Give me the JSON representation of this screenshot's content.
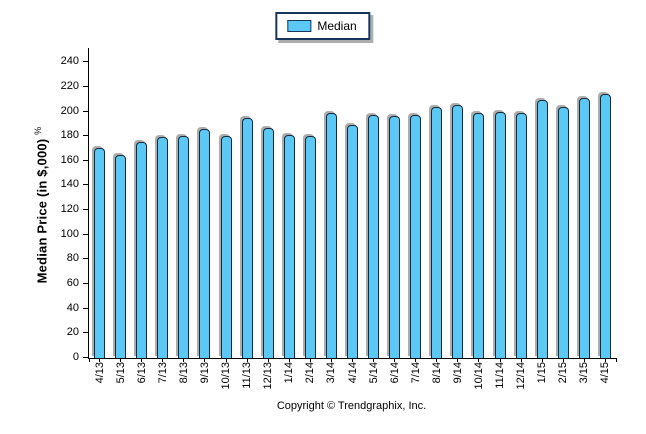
{
  "legend": {
    "label": "Median",
    "swatch_color": "#5cc8f5"
  },
  "y_axis": {
    "title": "Median Price (in $,000)",
    "title_suffix": "%"
  },
  "footer": {
    "copyright": "Copyright © Trendgraphix, Inc."
  },
  "colors": {
    "bar_fill": "#5cc8f5",
    "bar_border": "#142b3d",
    "legend_border": "#17365d",
    "axis": "#000000",
    "bar_shadow": "#919191"
  },
  "chart_data": {
    "type": "bar",
    "title": "",
    "categories": [
      "4/13",
      "5/13",
      "6/13",
      "7/13",
      "8/13",
      "9/13",
      "10/13",
      "11/13",
      "12/13",
      "1/14",
      "2/14",
      "3/14",
      "4/14",
      "5/14",
      "6/14",
      "7/14",
      "8/14",
      "9/14",
      "10/14",
      "11/14",
      "12/14",
      "1/15",
      "2/15",
      "3/15",
      "4/15"
    ],
    "series": [
      {
        "name": "Median",
        "values": [
          170,
          165,
          175,
          179,
          180,
          186,
          180,
          195,
          187,
          181,
          180,
          199,
          189,
          197,
          196,
          197,
          204,
          205,
          199,
          200,
          199,
          209,
          204,
          211,
          214
        ]
      }
    ],
    "xlabel": "",
    "ylabel": "Median Price (in $,000) %",
    "ylim": [
      0,
      240
    ],
    "y_tick_step": 20,
    "y_ticks": [
      0,
      20,
      40,
      60,
      80,
      100,
      120,
      140,
      160,
      180,
      200,
      220,
      240
    ],
    "grid": false,
    "legend_position": "top-center",
    "bar_color": "#5cc8f5"
  }
}
